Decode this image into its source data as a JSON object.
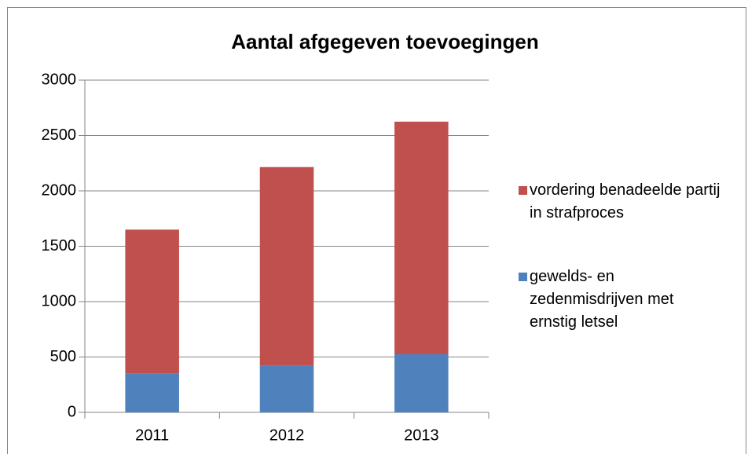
{
  "chart_data": {
    "type": "stacked_bar",
    "title": "Aantal afgegeven toevoegingen",
    "categories": [
      "2011",
      "2012",
      "2013"
    ],
    "series": [
      {
        "name": "gewelds- en zedenmisdrijven met ernstig letsel",
        "color": "#4f81bd",
        "values": [
          350,
          425,
          525
        ]
      },
      {
        "name": "vordering benadeelde partij in strafproces",
        "color": "#c0504d",
        "values": [
          1300,
          1790,
          2100
        ]
      }
    ],
    "ylim": [
      0,
      3000
    ],
    "yticks": [
      0,
      500,
      1000,
      1500,
      2000,
      2500,
      3000
    ],
    "grid": true,
    "legend": "right"
  }
}
